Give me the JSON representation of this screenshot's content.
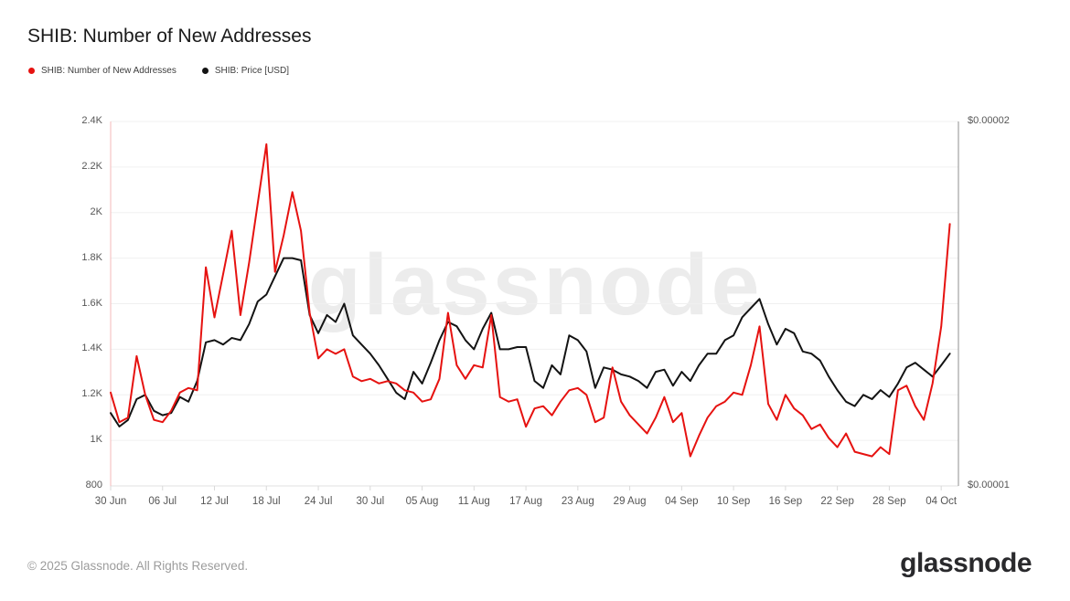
{
  "page": {
    "title": "SHIB: Number of New Addresses",
    "watermark": "glassnode",
    "footer_copyright": "© 2025 Glassnode. All Rights Reserved.",
    "brand_wordmark": "glassnode",
    "background": "#ffffff"
  },
  "colors": {
    "addresses_red": "#e61210",
    "price_black": "#131313",
    "gridline": "#f0f0f0",
    "baseline": "#e2e2e2",
    "left_axis_line": "#f5baba",
    "right_axis_line": "#8f8f8f",
    "tick": "#d9d9d9",
    "axis_text": "#565656",
    "watermark_gray": "#ececec"
  },
  "legend": {
    "items": [
      {
        "label": "SHIB: Number of New Addresses",
        "color": "#e61210"
      },
      {
        "label": "SHIB: Price [USD]",
        "color": "#131313"
      }
    ]
  },
  "chart_data": {
    "type": "line",
    "title": "SHIB: Number of New Addresses",
    "grid": "horizontal",
    "legend_position": "top-left",
    "x_axis": {
      "start_label": "30 Jun",
      "num_points": 98,
      "tick_labels": [
        "30 Jun",
        "06 Jul",
        "12 Jul",
        "18 Jul",
        "24 Jul",
        "30 Jul",
        "05 Aug",
        "11 Aug",
        "17 Aug",
        "23 Aug",
        "29 Aug",
        "04 Sep",
        "10 Sep",
        "16 Sep",
        "22 Sep",
        "28 Sep",
        "04 Oct"
      ],
      "tick_indices": [
        0,
        6,
        12,
        18,
        24,
        30,
        36,
        42,
        48,
        54,
        60,
        66,
        72,
        78,
        84,
        90,
        96
      ]
    },
    "left_axis": {
      "range": [
        800,
        2400
      ],
      "tick_values": [
        800,
        1000,
        1200,
        1400,
        1600,
        1800,
        2000,
        2200,
        2400
      ],
      "tick_labels": [
        "800",
        "1K",
        "1.2K",
        "1.4K",
        "1.6K",
        "1.8K",
        "2K",
        "2.2K",
        "2.4K"
      ]
    },
    "right_axis": {
      "range": [
        1e-05,
        2e-05
      ],
      "tick_values": [
        1e-05,
        2e-05
      ],
      "tick_labels": [
        "$0.00001",
        "$0.00002"
      ]
    },
    "series": [
      {
        "name": "SHIB: Price [USD]",
        "axis": "right",
        "color": "#131313",
        "values": [
          1.2e-05,
          1.163e-05,
          1.181e-05,
          1.238e-05,
          1.25e-05,
          1.206e-05,
          1.194e-05,
          1.2e-05,
          1.244e-05,
          1.231e-05,
          1.288e-05,
          1.394e-05,
          1.4e-05,
          1.388e-05,
          1.406e-05,
          1.4e-05,
          1.444e-05,
          1.506e-05,
          1.525e-05,
          1.575e-05,
          1.625e-05,
          1.625e-05,
          1.619e-05,
          1.469e-05,
          1.419e-05,
          1.469e-05,
          1.45e-05,
          1.5e-05,
          1.413e-05,
          1.388e-05,
          1.363e-05,
          1.331e-05,
          1.294e-05,
          1.256e-05,
          1.238e-05,
          1.313e-05,
          1.281e-05,
          1.338e-05,
          1.4e-05,
          1.45e-05,
          1.438e-05,
          1.4e-05,
          1.375e-05,
          1.431e-05,
          1.475e-05,
          1.375e-05,
          1.375e-05,
          1.381e-05,
          1.381e-05,
          1.288e-05,
          1.269e-05,
          1.331e-05,
          1.306e-05,
          1.413e-05,
          1.4e-05,
          1.369e-05,
          1.269e-05,
          1.325e-05,
          1.319e-05,
          1.306e-05,
          1.3e-05,
          1.288e-05,
          1.269e-05,
          1.313e-05,
          1.319e-05,
          1.275e-05,
          1.313e-05,
          1.288e-05,
          1.331e-05,
          1.363e-05,
          1.363e-05,
          1.4e-05,
          1.413e-05,
          1.463e-05,
          1.488e-05,
          1.513e-05,
          1.444e-05,
          1.388e-05,
          1.431e-05,
          1.419e-05,
          1.369e-05,
          1.363e-05,
          1.344e-05,
          1.3e-05,
          1.263e-05,
          1.231e-05,
          1.219e-05,
          1.25e-05,
          1.238e-05,
          1.263e-05,
          1.244e-05,
          1.281e-05,
          1.325e-05,
          1.338e-05,
          1.319e-05,
          1.3e-05,
          1.331e-05,
          1.363e-05
        ]
      },
      {
        "name": "SHIB: Number of New Addresses",
        "axis": "left",
        "color": "#e61210",
        "values": [
          1210,
          1080,
          1100,
          1370,
          1200,
          1090,
          1080,
          1130,
          1210,
          1230,
          1220,
          1760,
          1540,
          1730,
          1920,
          1550,
          1780,
          2040,
          2300,
          1740,
          1900,
          2090,
          1920,
          1560,
          1360,
          1400,
          1380,
          1400,
          1280,
          1260,
          1270,
          1250,
          1260,
          1250,
          1220,
          1210,
          1170,
          1180,
          1270,
          1560,
          1330,
          1270,
          1330,
          1320,
          1550,
          1190,
          1170,
          1180,
          1060,
          1140,
          1150,
          1110,
          1170,
          1220,
          1230,
          1200,
          1080,
          1100,
          1320,
          1170,
          1110,
          1070,
          1030,
          1100,
          1190,
          1080,
          1120,
          930,
          1020,
          1100,
          1150,
          1170,
          1210,
          1200,
          1330,
          1500,
          1160,
          1090,
          1200,
          1140,
          1110,
          1050,
          1070,
          1010,
          970,
          1030,
          950,
          940,
          930,
          970,
          940,
          1220,
          1240,
          1150,
          1090,
          1250,
          1500,
          1950
        ]
      }
    ]
  }
}
